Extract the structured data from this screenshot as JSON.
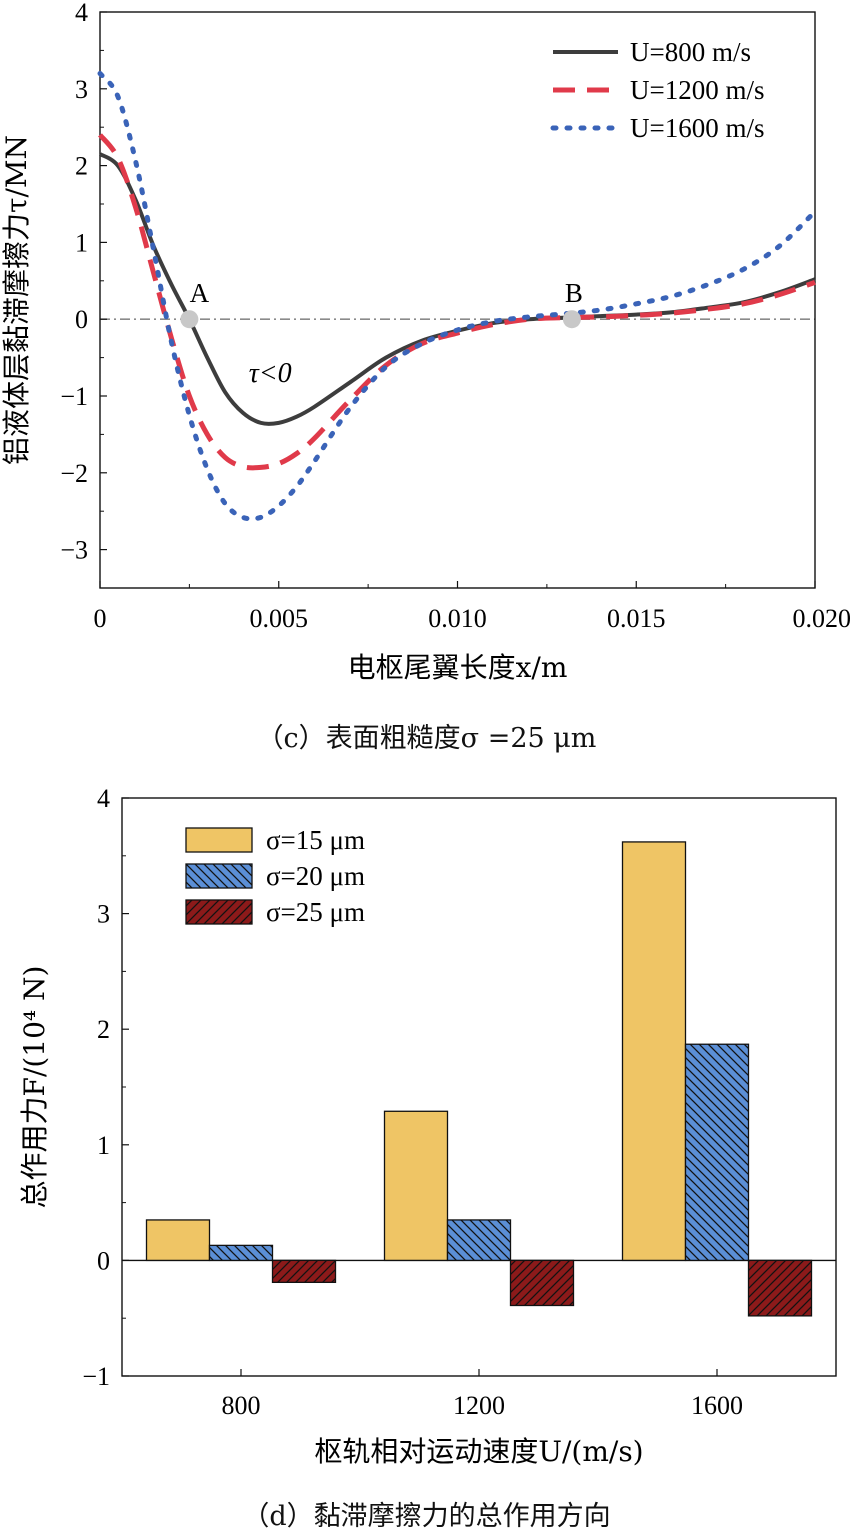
{
  "chart_data": [
    {
      "type": "line",
      "ylabel": "铝液体层黏滞摩擦力τ/MN",
      "xlabel": "电枢尾翼长度x/m",
      "xlim": [
        0,
        0.02
      ],
      "ylim": [
        -3.5,
        4
      ],
      "xticks": [
        "0",
        "0.005",
        "0.010",
        "0.015",
        "0.020"
      ],
      "yticks": [
        "4",
        "3",
        "2",
        "1",
        "0",
        "−1",
        "−2",
        "−3"
      ],
      "legend_position": "top-right",
      "series": [
        {
          "name": "U=800 m/s",
          "color": "#3d3d3d",
          "style": "solid",
          "x": [
            0,
            0.0005,
            0.001,
            0.0015,
            0.002,
            0.0025,
            0.003,
            0.0035,
            0.004,
            0.0045,
            0.005,
            0.0055,
            0.006,
            0.007,
            0.008,
            0.009,
            0.01,
            0.011,
            0.012,
            0.013,
            0.014,
            0.015,
            0.016,
            0.017,
            0.018,
            0.019,
            0.02
          ],
          "y": [
            2.15,
            2.0,
            1.55,
            0.95,
            0.45,
            0.0,
            -0.5,
            -0.95,
            -1.22,
            -1.35,
            -1.35,
            -1.27,
            -1.14,
            -0.82,
            -0.5,
            -0.28,
            -0.15,
            -0.05,
            0.0,
            0.02,
            0.04,
            0.06,
            0.09,
            0.15,
            0.22,
            0.35,
            0.52
          ]
        },
        {
          "name": "U=1200 m/s",
          "color": "#e03a4a",
          "style": "dashed",
          "x": [
            0,
            0.0005,
            0.001,
            0.0015,
            0.002,
            0.0025,
            0.003,
            0.0035,
            0.004,
            0.0045,
            0.005,
            0.0055,
            0.006,
            0.007,
            0.008,
            0.009,
            0.01,
            0.011,
            0.012,
            0.013,
            0.014,
            0.015,
            0.016,
            0.017,
            0.018,
            0.019,
            0.02
          ],
          "y": [
            2.4,
            2.1,
            1.45,
            0.6,
            -0.25,
            -1.0,
            -1.5,
            -1.8,
            -1.92,
            -1.93,
            -1.88,
            -1.75,
            -1.55,
            -1.05,
            -0.6,
            -0.32,
            -0.18,
            -0.07,
            0.0,
            0.02,
            0.03,
            0.05,
            0.08,
            0.13,
            0.2,
            0.32,
            0.48
          ]
        },
        {
          "name": "U=1600 m/s",
          "color": "#3a63b8",
          "style": "dotted",
          "x": [
            0,
            0.0005,
            0.001,
            0.0015,
            0.002,
            0.0025,
            0.003,
            0.0035,
            0.004,
            0.0045,
            0.005,
            0.0055,
            0.006,
            0.007,
            0.008,
            0.009,
            0.01,
            0.011,
            0.012,
            0.013,
            0.014,
            0.015,
            0.016,
            0.017,
            0.018,
            0.019,
            0.02
          ],
          "y": [
            3.2,
            2.9,
            2.05,
            0.9,
            -0.3,
            -1.25,
            -1.95,
            -2.4,
            -2.58,
            -2.58,
            -2.43,
            -2.18,
            -1.85,
            -1.15,
            -0.62,
            -0.32,
            -0.14,
            -0.03,
            0.03,
            0.07,
            0.12,
            0.2,
            0.3,
            0.45,
            0.65,
            0.95,
            1.4
          ]
        }
      ],
      "annotations": [
        {
          "label": "A",
          "x": 0.0025,
          "y": 0
        },
        {
          "label": "B",
          "x": 0.0132,
          "y": 0
        }
      ],
      "note_text": "τ<0",
      "note_position": {
        "x": 0.005,
        "y": -0.7
      },
      "caption": "（c）表面粗糙度σ =25 μm"
    },
    {
      "type": "bar",
      "ylabel": "总作用力F/(10⁴ N)",
      "xlabel": "枢轨相对运动速度U/(m/s)",
      "categories": [
        "800",
        "1200",
        "1600"
      ],
      "ylim": [
        -1,
        4
      ],
      "yticks": [
        "4",
        "3",
        "2",
        "1",
        "0",
        "−1"
      ],
      "legend_position": "top-left",
      "series": [
        {
          "name": "σ=15 μm",
          "color": "#efc565",
          "pattern": "none",
          "values": [
            0.35,
            1.29,
            3.62
          ]
        },
        {
          "name": "σ=20 μm",
          "color": "#5b8fd6",
          "pattern": "hatch",
          "values": [
            0.13,
            0.35,
            1.87
          ]
        },
        {
          "name": "σ=25 μm",
          "color": "#8c1a1a",
          "pattern": "hatch",
          "values": [
            -0.19,
            -0.39,
            -0.48
          ]
        }
      ],
      "caption": "（d）黏滞摩擦力的总作用方向"
    }
  ]
}
